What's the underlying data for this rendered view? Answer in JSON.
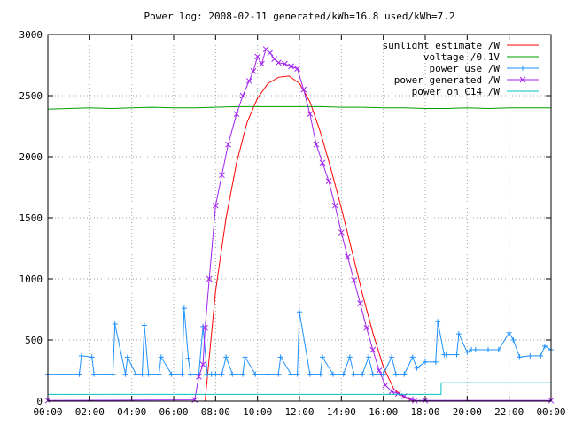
{
  "chart_data": {
    "type": "line",
    "title": "Power log: 2008-02-11 generated/kWh=16.8 used/kWh=7.2",
    "xlabel": "",
    "ylabel": "",
    "xlim": [
      0,
      24
    ],
    "ylim": [
      0,
      3000
    ],
    "x_ticks": [
      0,
      2,
      4,
      6,
      8,
      10,
      12,
      14,
      16,
      18,
      20,
      22,
      24
    ],
    "x_tick_labels": [
      "00:00",
      "02:00",
      "04:00",
      "06:00",
      "08:00",
      "10:00",
      "12:00",
      "14:00",
      "16:00",
      "18:00",
      "20:00",
      "22:00",
      "00:00"
    ],
    "y_ticks": [
      0,
      500,
      1000,
      1500,
      2000,
      2500,
      3000
    ],
    "y_tick_labels": [
      "0",
      "500",
      "1000",
      "1500",
      "2000",
      "2500",
      "3000"
    ],
    "grid": true,
    "legend_position": "top-right",
    "colors": {
      "sunlight": "#ff0000",
      "voltage": "#00a000",
      "use": "#1e90ff",
      "generated": "#a020f0",
      "c14": "#00c0c0"
    },
    "series": [
      {
        "name": "sunlight estimate /W",
        "color": "#ff0000",
        "marker": "none",
        "x": [
          7.5,
          8.0,
          8.5,
          9.0,
          9.5,
          10.0,
          10.5,
          11.0,
          11.5,
          12.0,
          12.5,
          13.0,
          13.5,
          14.0,
          14.5,
          15.0,
          15.5,
          16.0,
          16.5,
          17.0,
          17.5
        ],
        "y": [
          0,
          900,
          1500,
          1950,
          2280,
          2480,
          2600,
          2650,
          2660,
          2600,
          2450,
          2200,
          1900,
          1580,
          1230,
          880,
          560,
          280,
          100,
          30,
          0
        ]
      },
      {
        "name": "voltage /0.1V",
        "color": "#00a000",
        "marker": "none",
        "x": [
          0,
          1,
          2,
          3,
          4,
          5,
          6,
          7,
          8,
          9,
          10,
          11,
          12,
          13,
          14,
          15,
          16,
          17,
          18,
          19,
          20,
          21,
          22,
          23,
          24
        ],
        "y": [
          2390,
          2395,
          2400,
          2395,
          2400,
          2405,
          2400,
          2400,
          2405,
          2410,
          2410,
          2410,
          2410,
          2410,
          2405,
          2405,
          2400,
          2400,
          2395,
          2395,
          2400,
          2395,
          2400,
          2400,
          2400
        ]
      },
      {
        "name": "power use /W",
        "color": "#1e90ff",
        "marker": "plus",
        "x": [
          0,
          1.5,
          1.6,
          2.1,
          2.2,
          3.1,
          3.2,
          3.7,
          3.8,
          4.2,
          4.5,
          4.6,
          4.8,
          5.3,
          5.4,
          5.9,
          6.4,
          6.5,
          6.7,
          6.8,
          7.2,
          7.4,
          7.6,
          7.8,
          8.0,
          8.3,
          8.5,
          8.8,
          9.3,
          9.4,
          9.9,
          10.5,
          11.0,
          11.1,
          11.6,
          11.9,
          12.0,
          12.5,
          13.0,
          13.1,
          13.6,
          14.1,
          14.4,
          14.6,
          15.0,
          15.3,
          15.5,
          16.0,
          16.4,
          16.6,
          17.0,
          17.4,
          17.6,
          18.0,
          18.5,
          18.6,
          18.9,
          19.0,
          19.5,
          19.6,
          20.0,
          20.2,
          20.4,
          21.0,
          21.5,
          22.0,
          22.2,
          22.5,
          23.0,
          23.5,
          23.7,
          24.0
        ],
        "y": [
          220,
          220,
          370,
          360,
          220,
          220,
          630,
          220,
          360,
          220,
          220,
          620,
          220,
          220,
          360,
          220,
          220,
          760,
          350,
          220,
          220,
          610,
          220,
          220,
          220,
          220,
          360,
          220,
          220,
          360,
          220,
          220,
          220,
          360,
          220,
          220,
          730,
          220,
          220,
          360,
          220,
          220,
          360,
          220,
          220,
          360,
          220,
          220,
          360,
          220,
          220,
          360,
          270,
          320,
          320,
          650,
          380,
          380,
          380,
          550,
          400,
          420,
          420,
          420,
          420,
          560,
          500,
          360,
          370,
          370,
          450,
          420
        ]
      },
      {
        "name": "power generated /W",
        "color": "#a020f0",
        "marker": "x",
        "x": [
          0,
          7.0,
          7.2,
          7.4,
          7.5,
          7.7,
          8.0,
          8.3,
          8.6,
          9.0,
          9.3,
          9.6,
          9.8,
          10.0,
          10.2,
          10.4,
          10.6,
          10.8,
          11.0,
          11.3,
          11.6,
          11.9,
          12.2,
          12.5,
          12.8,
          13.1,
          13.4,
          13.7,
          14.0,
          14.3,
          14.6,
          14.9,
          15.2,
          15.5,
          15.8,
          16.1,
          16.4,
          16.7,
          17.0,
          17.3,
          17.5,
          18.0,
          24.0
        ],
        "y": [
          5,
          10,
          200,
          300,
          600,
          1000,
          1600,
          1850,
          2100,
          2350,
          2500,
          2620,
          2700,
          2820,
          2760,
          2880,
          2850,
          2800,
          2770,
          2760,
          2740,
          2720,
          2550,
          2350,
          2100,
          1950,
          1800,
          1600,
          1380,
          1180,
          990,
          800,
          600,
          420,
          250,
          130,
          80,
          60,
          40,
          15,
          5,
          5,
          5
        ]
      },
      {
        "name": "power on C14 /W",
        "color": "#00c0c0",
        "marker": "none",
        "x": [
          0,
          18.75,
          18.76,
          24
        ],
        "y": [
          55,
          55,
          150,
          150
        ]
      }
    ]
  }
}
